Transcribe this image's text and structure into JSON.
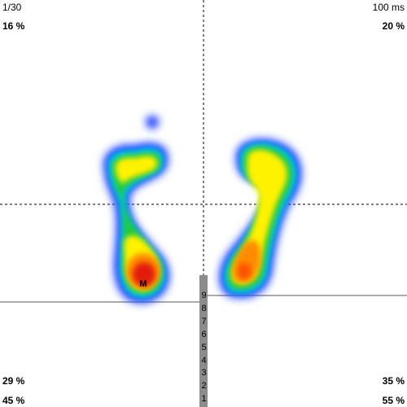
{
  "header": {
    "frame": "1/30",
    "time": "100 ms"
  },
  "quadrants": {
    "top_left": "16 %",
    "top_right": "20 %",
    "lower_left": "29 %",
    "lower_right": "35 %"
  },
  "totals": {
    "left": "45 %",
    "right": "55 %"
  },
  "marker": "M",
  "scale": {
    "labels": [
      "9",
      "8",
      "7",
      "6",
      "5",
      "4",
      "3",
      "2",
      "1"
    ]
  },
  "colors": {
    "low": "#1f3cff",
    "mid_low": "#00c8e6",
    "mid": "#22c83c",
    "high": "#fff200",
    "very_high": "#ff8c00",
    "peak": "#e21c10"
  }
}
